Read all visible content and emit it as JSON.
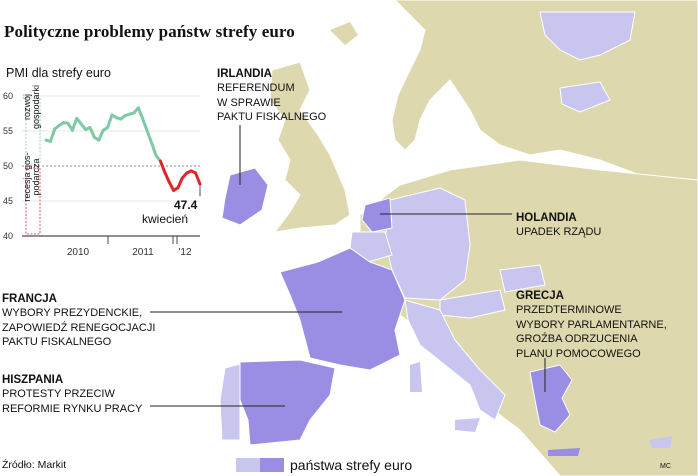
{
  "title": "Polityczne problemy państw strefy euro",
  "chart": {
    "title": "PMI dla strefy euro",
    "band_upper_label": "rozwój gospodarki",
    "band_lower_label": "recesja gos- podarcza",
    "final_value": "47.4",
    "final_month": "kwiecień"
  },
  "chart_data": {
    "type": "line",
    "title": "PMI dla strefy euro",
    "xlabel": "",
    "ylabel": "",
    "ylim": [
      40,
      60
    ],
    "yticks": [
      40,
      45,
      50,
      55,
      60
    ],
    "xticks": [
      "2010",
      "2011",
      "'12"
    ],
    "threshold": 50,
    "series": [
      {
        "values": [
          53.7,
          53.5,
          55.3,
          55.8,
          56.2,
          56.1,
          55.1,
          56.8,
          56.0,
          55.2,
          55.5,
          54.1,
          53.7,
          55.1,
          55.5,
          57.3,
          56.9,
          56.7,
          57.2,
          57.4,
          57.6,
          58.3,
          56.7,
          55.0,
          53.3,
          51.5,
          50.7,
          49.1,
          47.7,
          46.5,
          46.9,
          48.3,
          49.0,
          49.3,
          49.0,
          47.4
        ]
      }
    ]
  },
  "countries": [
    {
      "name": "IRLANDIA",
      "desc": "REFERENDUM\nW SPRAWIE\nPAKTU FISKALNEGO"
    },
    {
      "name": "HOLANDIA",
      "desc": "UPADEK RZĄDU"
    },
    {
      "name": "FRANCJA",
      "desc": "WYBORY PREZYDENCKIE,\nZAPOWIEDŹ RENEGOCJACJI\nPAKTU FISKALNEGO"
    },
    {
      "name": "GRECJA",
      "desc": "PRZEDTERMINOWE\nWYBORY PARLAMENTARNE,\nGROŹBA ODRZUCENIA\nPLANU POMOCOWEGO"
    },
    {
      "name": "HISZPANIA",
      "desc": "PROTESTY PRZECIW\nREFORMIE RYNKU PRACY"
    }
  ],
  "legend": {
    "label": "państwa strefy euro"
  },
  "source": "Źródło: Markit",
  "credit": "MC",
  "colors": {
    "land": "#ddd8ae",
    "sea": "#ffffff",
    "eurozone_highlight": "#9a8ee4",
    "eurozone": "#c8c5ee",
    "growth": "#7fc9a6",
    "recession": "#e0262b"
  }
}
